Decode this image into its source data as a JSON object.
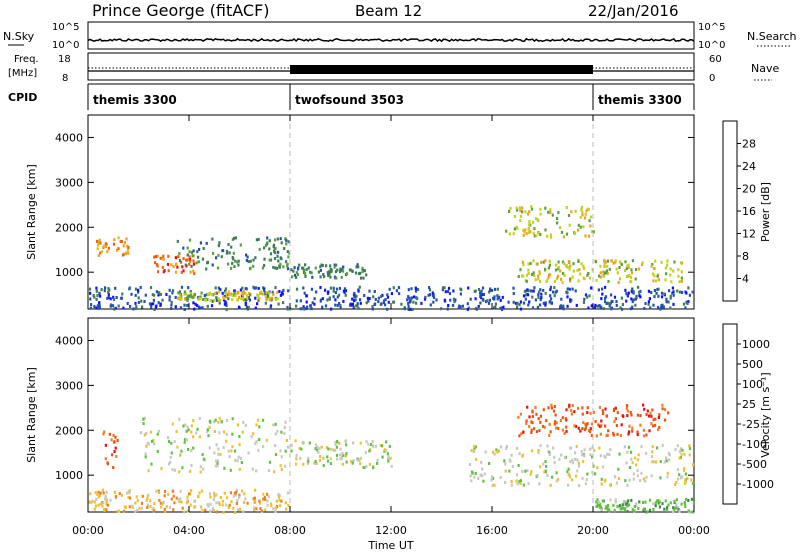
{
  "header": {
    "station": "Prince George (fitACF)",
    "beam": "Beam 12",
    "date": "22/Jan/2016"
  },
  "panels": {
    "nsky": {
      "label": "N.Sky",
      "tick_top": "10^5",
      "tick_bottom": "10^0",
      "right_label": "N.Search",
      "right_tick_top": "10^5",
      "right_tick_bottom": "10^0"
    },
    "freq": {
      "label_top": "Freq.",
      "label_unit": "[MHz]",
      "tick_top": "18",
      "tick_bottom": "8",
      "right_label": "Nave",
      "right_tick_top": "60",
      "right_tick_bottom": "0"
    },
    "cpid": {
      "label": "CPID",
      "segments": [
        {
          "name": "themis 3300",
          "start_h": 0,
          "end_h": 8
        },
        {
          "name": "twofsound 3503",
          "start_h": 8,
          "end_h": 20
        },
        {
          "name": "themis 3300",
          "start_h": 20,
          "end_h": 24
        }
      ]
    }
  },
  "chart_data": [
    {
      "type": "heatmap",
      "title": "",
      "ylabel": "Slant Range [km]",
      "xlabel": "Time UT",
      "x_ticks": [
        "00:00",
        "04:00",
        "08:00",
        "12:00",
        "16:00",
        "20:00",
        "00:00"
      ],
      "xlim_hours": [
        0,
        24
      ],
      "y_ticks": [
        "1000",
        "2000",
        "3000",
        "4000"
      ],
      "ylim": [
        180,
        4500
      ],
      "colorbar": {
        "label": "Power [dB]",
        "ticks": [
          "4",
          "8",
          "12",
          "16",
          "20",
          "24",
          "28"
        ],
        "colors": [
          "#1010ff",
          "#2050b0",
          "#3c7a5a",
          "#58a03c",
          "#c4d020",
          "#f0a020",
          "#f06010",
          "#e81010"
        ]
      },
      "scatter_regions_km_hours": [
        {
          "t0": 0.0,
          "t1": 24.0,
          "r0": 200,
          "r1": 700,
          "level": 1
        },
        {
          "t0": 0.3,
          "t1": 1.6,
          "r0": 1400,
          "r1": 1800,
          "level": 5
        },
        {
          "t0": 2.5,
          "t1": 4.2,
          "r0": 1000,
          "r1": 1400,
          "level": 6
        },
        {
          "t0": 3.5,
          "t1": 8.0,
          "r0": 1100,
          "r1": 1800,
          "level": 2
        },
        {
          "t0": 8.0,
          "t1": 11.0,
          "r0": 900,
          "r1": 1200,
          "level": 2
        },
        {
          "t0": 16.5,
          "t1": 20.0,
          "r0": 1800,
          "r1": 2500,
          "level": 4
        },
        {
          "t0": 17.0,
          "t1": 23.5,
          "r0": 800,
          "r1": 1300,
          "level": 4
        },
        {
          "t0": 3.5,
          "t1": 7.5,
          "r0": 400,
          "r1": 600,
          "level": 4
        }
      ]
    },
    {
      "type": "heatmap",
      "title": "",
      "ylabel": "Slant Range [km]",
      "xlabel": "Time UT",
      "x_ticks": [
        "00:00",
        "04:00",
        "08:00",
        "12:00",
        "16:00",
        "20:00",
        "00:00"
      ],
      "xlim_hours": [
        0,
        24
      ],
      "y_ticks": [
        "1000",
        "2000",
        "3000",
        "4000"
      ],
      "ylim": [
        180,
        4500
      ],
      "colorbar": {
        "label": "Velocity [m s⁻¹]",
        "ticks": [
          "1000",
          "500",
          "100",
          "25",
          "-25",
          "-100",
          "-500",
          "-1000"
        ],
        "colors": [
          "#2030c0",
          "#3a6a7a",
          "#3a8a4a",
          "#60c040",
          "#c8c8c0",
          "#f0c030",
          "#f08020",
          "#f05010",
          "#e81010"
        ]
      },
      "scatter_regions_km_hours": [
        {
          "t0": 0.0,
          "t1": 8.0,
          "r0": 200,
          "r1": 700,
          "level": 5
        },
        {
          "t0": 0.5,
          "t1": 1.2,
          "r0": 1200,
          "r1": 2000,
          "level": 7
        },
        {
          "t0": 2.0,
          "t1": 8.0,
          "r0": 1100,
          "r1": 2300,
          "level": 4
        },
        {
          "t0": 8.0,
          "t1": 12.0,
          "r0": 1200,
          "r1": 1800,
          "level": 4
        },
        {
          "t0": 15.0,
          "t1": 24.0,
          "r0": 800,
          "r1": 1700,
          "level": 4
        },
        {
          "t0": 17.0,
          "t1": 23.0,
          "r0": 1900,
          "r1": 2600,
          "level": 7
        },
        {
          "t0": 20.0,
          "t1": 24.0,
          "r0": 200,
          "r1": 500,
          "level": 3
        }
      ]
    }
  ]
}
